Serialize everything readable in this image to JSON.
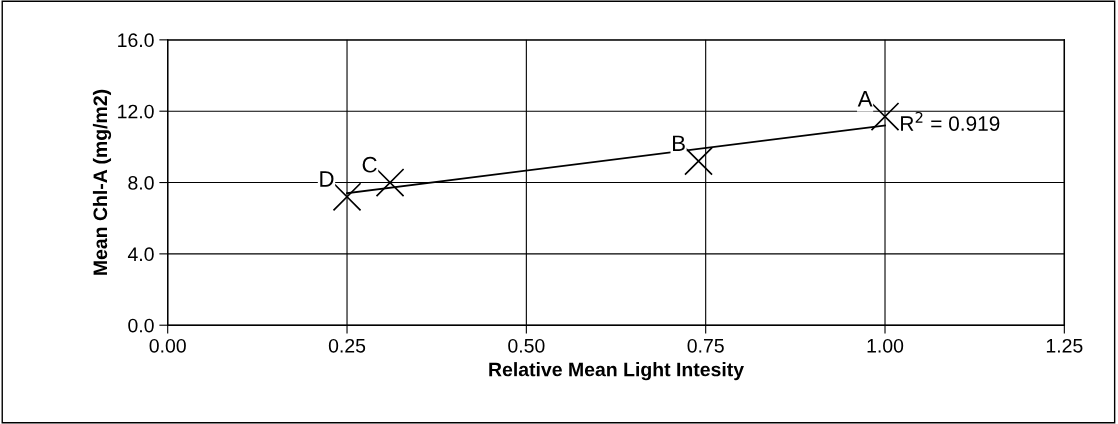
{
  "chart_data": {
    "type": "scatter",
    "xlabel": "Relative Mean Light Intesity",
    "ylabel": "Mean Chl-A (mg/m2)",
    "series": [
      {
        "color": "#000000",
        "marker": "cross",
        "x": [
          1.0,
          0.74,
          0.31,
          0.25
        ],
        "values": [
          11.7,
          9.2,
          8.0,
          7.2
        ]
      },
      {
        "type": "line",
        "color": "#000000",
        "line_style": "solid",
        "marker": "none",
        "x": [
          0.25,
          1.0
        ],
        "values": [
          7.4,
          11.2
        ]
      }
    ],
    "annotations": [
      {
        "text": "A",
        "x": 1.0,
        "y": 11.7
      },
      {
        "text": "B",
        "x": 0.74,
        "y": 9.2
      },
      {
        "text": "C",
        "x": 0.31,
        "y": 8.0
      },
      {
        "text": "D",
        "x": 0.25,
        "y": 7.2
      },
      "R$^{2}$ = 0.919"
    ],
    "xlim": [
      0,
      1.25
    ],
    "xticks": [
      {
        "value": 0,
        "label": "0.00"
      },
      {
        "value": 0.25,
        "label": "0.25"
      },
      {
        "value": 0.5,
        "label": "0.50"
      },
      {
        "value": 0.75,
        "label": "0.75"
      },
      {
        "value": 1.0,
        "label": "1.00"
      },
      {
        "value": 1.25,
        "label": "1.25"
      }
    ],
    "ylim": [
      0,
      16
    ],
    "yticks": [
      {
        "value": 0,
        "label": "0.0"
      },
      {
        "value": 4,
        "label": "4.0"
      },
      {
        "value": 8,
        "label": "8.0"
      },
      {
        "value": 12,
        "label": "12.0"
      },
      {
        "value": 16,
        "label": "16.0"
      }
    ],
    "grid": true,
    "legend": false
  }
}
